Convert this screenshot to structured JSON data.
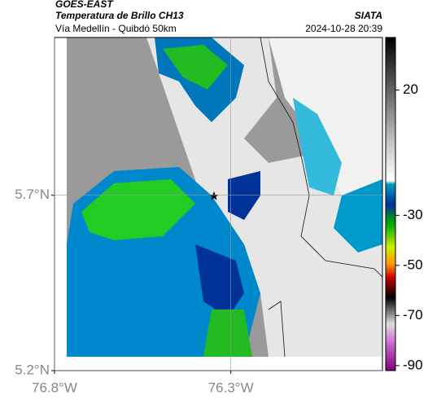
{
  "header": {
    "title": "GOES-EAST",
    "subtitle": "Temperatura de Brillo CH13",
    "route": "Vía Medellín - Quibdó 50km",
    "source": "SIATA",
    "datetime": "2024-10-28 20:39"
  },
  "map": {
    "latlim": [
      5.2,
      6.15
    ],
    "lonlim": [
      -76.8,
      -75.87
    ],
    "lat_ticks": [
      {
        "value": 5.7,
        "label": "5.7°N"
      },
      {
        "value": 5.2,
        "label": "5.2°N"
      }
    ],
    "lon_ticks": [
      {
        "value": -76.8,
        "label": "76.8°W"
      },
      {
        "value": -76.3,
        "label": "76.3°W"
      }
    ]
  },
  "colorbar": {
    "lim": [
      -92,
      41
    ],
    "ticks": [
      20,
      -30,
      -50,
      -70,
      -90
    ]
  }
}
